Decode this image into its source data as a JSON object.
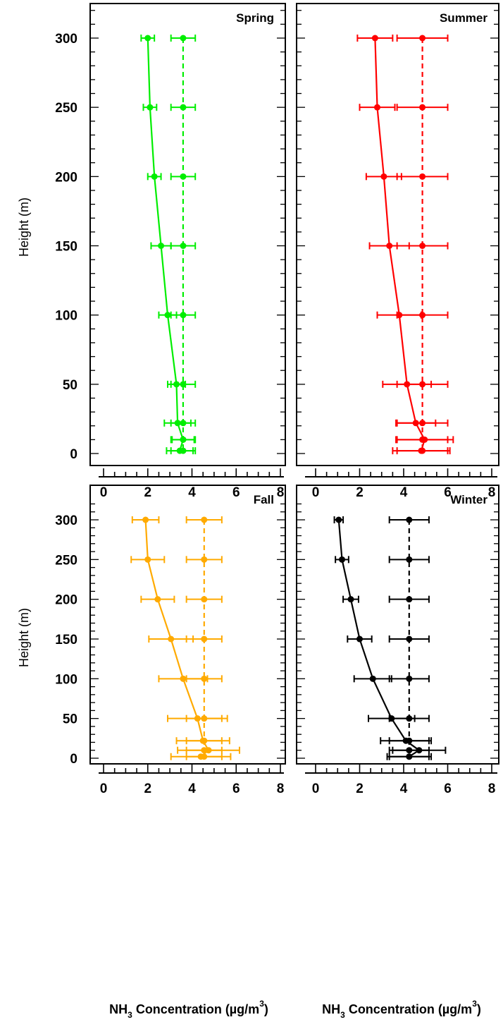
{
  "chart_data": [
    {
      "type": "line",
      "title": "Spring",
      "color": "#00ee00",
      "xlabel": "",
      "ylabel": "Height (m)",
      "xlim": [
        0,
        8
      ],
      "ylim": [
        0,
        320
      ],
      "xticks": [
        "0",
        "2",
        "4",
        "6",
        "8"
      ],
      "yticks": [
        "0",
        "50",
        "100",
        "150",
        "200",
        "250",
        "300"
      ],
      "series": [
        {
          "style": "solid",
          "points": [
            {
              "y": 300,
              "x": 2.0,
              "err": 0.3
            },
            {
              "y": 250,
              "x": 2.1,
              "err": 0.3
            },
            {
              "y": 200,
              "x": 2.3,
              "err": 0.3
            },
            {
              "y": 150,
              "x": 2.6,
              "err": 0.45
            },
            {
              "y": 100,
              "x": 2.9,
              "err": 0.4
            },
            {
              "y": 50,
              "x": 3.3,
              "err": 0.4
            },
            {
              "y": 22,
              "x": 3.35,
              "err": 0.6
            },
            {
              "y": 10,
              "x": 3.6,
              "err": 0.5
            },
            {
              "y": 2,
              "x": 3.45,
              "err": 0.6
            }
          ]
        },
        {
          "style": "dashed",
          "points": [
            {
              "y": 300,
              "x": 3.6,
              "err": 0.55
            },
            {
              "y": 250,
              "x": 3.6,
              "err": 0.55
            },
            {
              "y": 200,
              "x": 3.6,
              "err": 0.55
            },
            {
              "y": 150,
              "x": 3.6,
              "err": 0.55
            },
            {
              "y": 100,
              "x": 3.6,
              "err": 0.55
            },
            {
              "y": 50,
              "x": 3.6,
              "err": 0.55
            },
            {
              "y": 22,
              "x": 3.6,
              "err": 0.55
            },
            {
              "y": 10,
              "x": 3.6,
              "err": 0.55
            },
            {
              "y": 2,
              "x": 3.6,
              "err": 0.55
            }
          ]
        }
      ]
    },
    {
      "type": "line",
      "title": "Summer",
      "color": "#ff0000",
      "xlabel": "",
      "ylabel": "",
      "xlim": [
        0,
        8
      ],
      "ylim": [
        0,
        320
      ],
      "xticks": [
        "0",
        "2",
        "4",
        "6",
        "8"
      ],
      "yticks": [
        "0",
        "50",
        "100",
        "150",
        "200",
        "250",
        "300"
      ],
      "series": [
        {
          "style": "solid",
          "points": [
            {
              "y": 300,
              "x": 2.7,
              "err": 0.8
            },
            {
              "y": 250,
              "x": 2.8,
              "err": 0.8
            },
            {
              "y": 200,
              "x": 3.1,
              "err": 0.8
            },
            {
              "y": 150,
              "x": 3.35,
              "err": 0.9
            },
            {
              "y": 100,
              "x": 3.8,
              "err": 1.0
            },
            {
              "y": 50,
              "x": 4.15,
              "err": 1.1
            },
            {
              "y": 22,
              "x": 4.55,
              "err": 0.9
            },
            {
              "y": 10,
              "x": 4.95,
              "err": 1.3
            },
            {
              "y": 2,
              "x": 4.8,
              "err": 1.3
            }
          ]
        },
        {
          "style": "dashed",
          "points": [
            {
              "y": 300,
              "x": 4.85,
              "err": 1.15
            },
            {
              "y": 250,
              "x": 4.85,
              "err": 1.15
            },
            {
              "y": 200,
              "x": 4.85,
              "err": 1.15
            },
            {
              "y": 150,
              "x": 4.85,
              "err": 1.15
            },
            {
              "y": 100,
              "x": 4.85,
              "err": 1.15
            },
            {
              "y": 50,
              "x": 4.85,
              "err": 1.15
            },
            {
              "y": 22,
              "x": 4.85,
              "err": 1.15
            },
            {
              "y": 10,
              "x": 4.85,
              "err": 1.15
            },
            {
              "y": 2,
              "x": 4.85,
              "err": 1.15
            }
          ]
        }
      ]
    },
    {
      "type": "line",
      "title": "Fall",
      "color": "#ffaa00",
      "xlabel": "NH3 Concentration (µg/m3)",
      "ylabel": "Height (m)",
      "xlim": [
        0,
        8
      ],
      "ylim": [
        0,
        320
      ],
      "xticks": [
        "0",
        "2",
        "4",
        "6",
        "8"
      ],
      "yticks": [
        "0",
        "50",
        "100",
        "150",
        "200",
        "250",
        "300"
      ],
      "series": [
        {
          "style": "solid",
          "points": [
            {
              "y": 300,
              "x": 1.9,
              "err": 0.6
            },
            {
              "y": 250,
              "x": 2.0,
              "err": 0.75
            },
            {
              "y": 200,
              "x": 2.45,
              "err": 0.75
            },
            {
              "y": 150,
              "x": 3.05,
              "err": 1.0
            },
            {
              "y": 100,
              "x": 3.6,
              "err": 1.1
            },
            {
              "y": 50,
              "x": 4.25,
              "err": 1.35
            },
            {
              "y": 22,
              "x": 4.5,
              "err": 1.2
            },
            {
              "y": 10,
              "x": 4.75,
              "err": 1.4
            },
            {
              "y": 2,
              "x": 4.4,
              "err": 1.35
            }
          ]
        },
        {
          "style": "dashed",
          "points": [
            {
              "y": 300,
              "x": 4.55,
              "err": 0.8
            },
            {
              "y": 250,
              "x": 4.55,
              "err": 0.8
            },
            {
              "y": 200,
              "x": 4.55,
              "err": 0.8
            },
            {
              "y": 150,
              "x": 4.55,
              "err": 0.8
            },
            {
              "y": 100,
              "x": 4.55,
              "err": 0.8
            },
            {
              "y": 50,
              "x": 4.55,
              "err": 0.8
            },
            {
              "y": 22,
              "x": 4.55,
              "err": 0.8
            },
            {
              "y": 10,
              "x": 4.55,
              "err": 0.8
            },
            {
              "y": 2,
              "x": 4.55,
              "err": 0.8
            }
          ]
        }
      ]
    },
    {
      "type": "line",
      "title": "Winter",
      "color": "#000000",
      "xlabel": "NH3 Concentration (µg/m3)",
      "ylabel": "",
      "xlim": [
        0,
        8
      ],
      "ylim": [
        0,
        320
      ],
      "xticks": [
        "0",
        "2",
        "4",
        "6",
        "8"
      ],
      "yticks": [
        "0",
        "50",
        "100",
        "150",
        "200",
        "250",
        "300"
      ],
      "series": [
        {
          "style": "solid",
          "points": [
            {
              "y": 300,
              "x": 1.05,
              "err": 0.2
            },
            {
              "y": 250,
              "x": 1.2,
              "err": 0.3
            },
            {
              "y": 200,
              "x": 1.6,
              "err": 0.35
            },
            {
              "y": 150,
              "x": 2.0,
              "err": 0.55
            },
            {
              "y": 100,
              "x": 2.6,
              "err": 0.85
            },
            {
              "y": 50,
              "x": 3.45,
              "err": 1.05
            },
            {
              "y": 22,
              "x": 4.1,
              "err": 1.15
            },
            {
              "y": 10,
              "x": 4.7,
              "err": 1.2
            },
            {
              "y": 2,
              "x": 4.25,
              "err": 1.0
            }
          ]
        },
        {
          "style": "dashed",
          "points": [
            {
              "y": 300,
              "x": 4.25,
              "err": 0.9
            },
            {
              "y": 250,
              "x": 4.25,
              "err": 0.9
            },
            {
              "y": 200,
              "x": 4.25,
              "err": 0.9
            },
            {
              "y": 150,
              "x": 4.25,
              "err": 0.9
            },
            {
              "y": 100,
              "x": 4.25,
              "err": 0.9
            },
            {
              "y": 50,
              "x": 4.25,
              "err": 0.9
            },
            {
              "y": 22,
              "x": 4.25,
              "err": 0.9
            },
            {
              "y": 10,
              "x": 4.25,
              "err": 0.9
            },
            {
              "y": 2,
              "x": 4.25,
              "err": 0.9
            }
          ]
        }
      ]
    }
  ],
  "labels": {
    "ylabel_top": "Height (m)",
    "ylabel_bottom": "Height (m)",
    "xlabel_left": {
      "pre": "NH",
      "sub": "3",
      "mid": " Concentration (µg/m",
      "sup": "3",
      "post": ")"
    },
    "xlabel_right": {
      "pre": "NH",
      "sub": "3",
      "mid": " Concentration (µg/m",
      "sup": "3",
      "post": ")"
    }
  }
}
